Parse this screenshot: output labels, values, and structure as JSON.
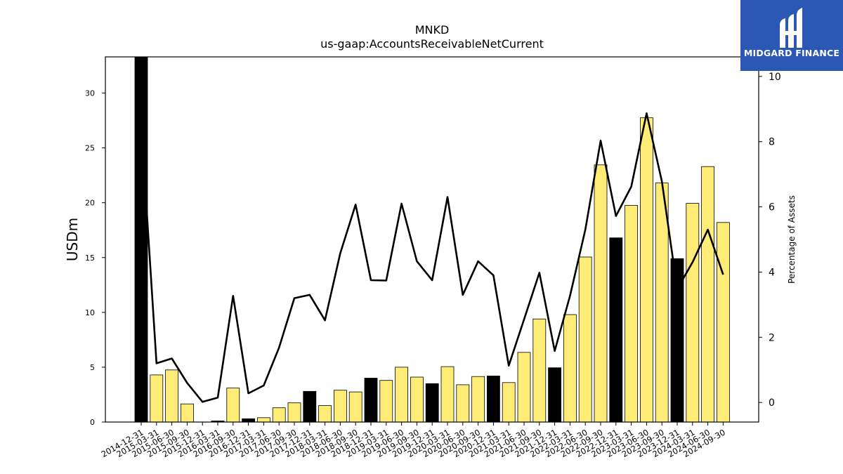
{
  "chart_data": {
    "type": "bar",
    "title": "MNKD",
    "subtitle": "us-gaap:AccountsReceivableNetCurrent",
    "ylabel": "USDm",
    "y2label": "Percentage of Assets",
    "ylim": [
      0,
      33.3
    ],
    "y2lim": [
      -0.6,
      10.6
    ],
    "yticks": [
      0,
      5,
      10,
      15,
      20,
      25,
      30
    ],
    "y2ticks": [
      0,
      2,
      4,
      6,
      8,
      10
    ],
    "categories": [
      "2014-12-31",
      "2015-03-31",
      "2015-06-30",
      "2015-09-30",
      "2015-12-31",
      "2016-03-31",
      "2016-09-30",
      "2016-12-31",
      "2017-03-31",
      "2017-06-30",
      "2017-09-30",
      "2017-12-31",
      "2018-03-31",
      "2018-06-30",
      "2018-09-30",
      "2018-12-31",
      "2019-03-31",
      "2019-06-30",
      "2019-09-30",
      "2019-12-31",
      "2020-03-31",
      "2020-06-30",
      "2020-09-30",
      "2020-12-31",
      "2021-03-31",
      "2021-06-30",
      "2021-09-30",
      "2021-12-31",
      "2022-03-31",
      "2022-06-30",
      "2022-09-30",
      "2022-12-31",
      "2023-03-31",
      "2023-06-30",
      "2023-09-30",
      "2023-12-31",
      "2024-03-31",
      "2024-06-30",
      "2024-09-30"
    ],
    "series": [
      {
        "type": "bar",
        "values": [
          33.3,
          4.3,
          4.75,
          1.65,
          0,
          0.1,
          3.1,
          0.3,
          0.4,
          1.3,
          1.75,
          2.8,
          1.5,
          2.9,
          2.75,
          4.0,
          3.8,
          5.0,
          4.1,
          3.5,
          5.05,
          3.4,
          4.15,
          4.2,
          3.6,
          6.35,
          9.4,
          4.95,
          9.8,
          15.05,
          23.45,
          16.8,
          19.75,
          27.75,
          21.8,
          14.9,
          19.95,
          23.3,
          18.2
        ],
        "highlight": [
          true,
          false,
          false,
          false,
          false,
          true,
          false,
          true,
          false,
          false,
          false,
          true,
          false,
          false,
          false,
          true,
          false,
          false,
          false,
          true,
          false,
          false,
          false,
          true,
          false,
          false,
          false,
          true,
          false,
          false,
          false,
          true,
          false,
          false,
          false,
          true,
          false,
          false,
          false
        ],
        "colors": {
          "normal": "#ffec77",
          "highlight": "#000000"
        }
      },
      {
        "type": "line",
        "axis": "right",
        "values": [
          8.5,
          1.2,
          1.35,
          0.6,
          0.02,
          0.15,
          3.27,
          0.28,
          0.52,
          1.68,
          3.2,
          3.3,
          2.52,
          4.58,
          6.07,
          3.75,
          3.74,
          6.1,
          4.33,
          3.75,
          6.3,
          3.3,
          4.33,
          3.9,
          1.13,
          2.55,
          3.98,
          1.58,
          3.27,
          5.3,
          8.03,
          5.72,
          6.62,
          8.87,
          6.78,
          3.48,
          4.3,
          5.3,
          3.92
        ],
        "color": "#000000"
      }
    ]
  },
  "logo": {
    "text": "MIDGARD FINANCE",
    "color": "#2b58b4"
  }
}
